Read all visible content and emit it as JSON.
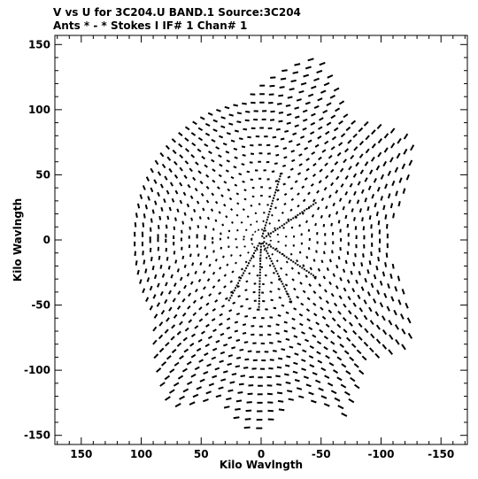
{
  "chart_data": {
    "type": "scatter",
    "title_line1": "V vs U for 3C204.U BAND.1   Source:3C204",
    "title_line2": "Ants * - *    Stokes I  IF# 1  Chan# 1",
    "xlabel": "Kilo Wavlngth",
    "ylabel": "Kilo Wavlngth",
    "xlim": [
      172,
      -172
    ],
    "ylim": [
      -157,
      157
    ],
    "x_ticks": [
      150,
      100,
      50,
      0,
      -50,
      -100,
      -150
    ],
    "x_tick_labels": [
      "150",
      "100",
      "50",
      "0",
      "-50",
      "-100",
      "-150"
    ],
    "y_ticks": [
      150,
      100,
      50,
      0,
      -50,
      -100,
      -150
    ],
    "y_tick_labels": [
      "150",
      "100",
      "50",
      "0",
      "-50",
      "-100",
      "-150"
    ],
    "grid": false,
    "legend": "none",
    "marker_color": "#000000",
    "uv_coverage": {
      "arms": 6,
      "arm_angles_deg": [
        -88,
        108,
        148,
        212,
        242,
        300
      ],
      "outer_radius": 153,
      "inner_radius": 3,
      "ring_spacing": 6.5,
      "track_spacing_deg": 7.5,
      "shape": "six-armed star, point-symmetric about origin"
    }
  }
}
